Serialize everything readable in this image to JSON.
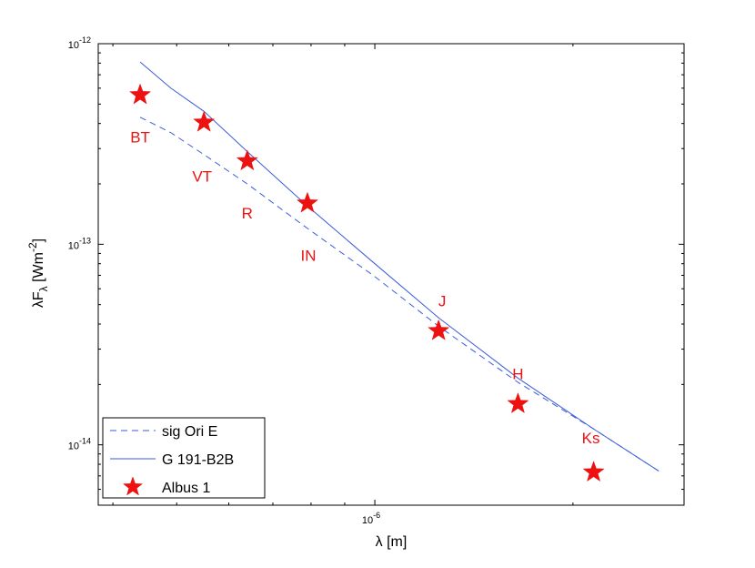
{
  "chart_data": {
    "type": "line",
    "title": "",
    "xlabel": "λ [m]",
    "ylabel": "λF_λ [Wm^-2]",
    "x_scale": "log",
    "y_scale": "log",
    "xlim": [
      3.8e-07,
      2.95e-06
    ],
    "ylim": [
      5e-15,
      1e-12
    ],
    "x_ticks": [
      {
        "value": 1e-06,
        "base": "10",
        "exp": "-6"
      }
    ],
    "y_ticks": [
      {
        "value": 1e-14,
        "base": "10",
        "exp": "-14"
      },
      {
        "value": 1e-13,
        "base": "10",
        "exp": "-13"
      },
      {
        "value": 1e-12,
        "base": "10",
        "exp": "-12"
      }
    ],
    "grid": false,
    "legend_position": "bottom-left",
    "colors": {
      "model": "#3a5bdc",
      "data": "#ee1111",
      "axis": "#000000"
    },
    "series": [
      {
        "name": "sig Ori E",
        "style": "dashed",
        "x": [
          4.4e-07,
          4.9e-07,
          5.5e-07,
          6.4e-07,
          7.9e-07,
          1e-06,
          1.25e-06,
          1.65e-06,
          2.15e-06,
          2.7e-06
        ],
        "y": [
          4.3e-13,
          3.6e-13,
          2.8e-13,
          2e-13,
          1.2e-13,
          6.9e-14,
          3.9e-14,
          2.05e-14,
          1.2e-14,
          7.4e-15
        ]
      },
      {
        "name": "G 191-B2B",
        "style": "solid",
        "x": [
          4.4e-07,
          4.9e-07,
          5.5e-07,
          6.4e-07,
          7.9e-07,
          1e-06,
          1.25e-06,
          1.65e-06,
          2.15e-06,
          2.7e-06
        ],
        "y": [
          8.1e-13,
          6e-13,
          4.6e-13,
          2.9e-13,
          1.55e-13,
          8e-14,
          4.3e-14,
          2.15e-14,
          1.2e-14,
          7.4e-15
        ]
      },
      {
        "name": "Albus 1",
        "style": "markers",
        "marker": "star",
        "x": [
          4.4e-07,
          5.5e-07,
          6.4e-07,
          7.9e-07,
          1.25e-06,
          1.65e-06,
          2.15e-06
        ],
        "y": [
          5.55e-13,
          4.05e-13,
          2.6e-13,
          1.6e-13,
          3.7e-14,
          1.6e-14,
          7.3e-15
        ],
        "labels": [
          "BT",
          "VT",
          "R",
          "IN",
          "J",
          "H",
          "Ks"
        ]
      }
    ]
  }
}
